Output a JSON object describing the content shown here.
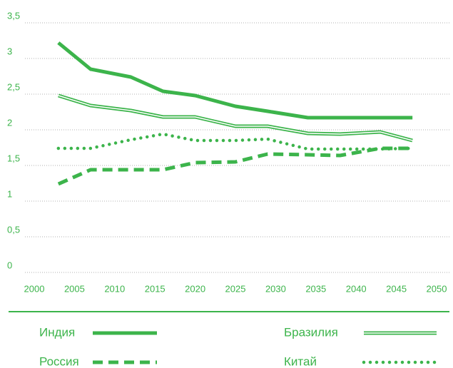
{
  "chart_data": {
    "type": "line",
    "x": [
      2003,
      2007,
      2012,
      2016,
      2020,
      2025,
      2029,
      2034,
      2038,
      2043,
      2047
    ],
    "series": [
      {
        "name": "Индия",
        "color": "#3cb44b",
        "style": "solid",
        "values": [
          3.22,
          2.85,
          2.74,
          2.54,
          2.48,
          2.33,
          2.26,
          2.17,
          2.17,
          2.17,
          2.17
        ]
      },
      {
        "name": "Бразилия",
        "color": "#3cb44b",
        "style": "double",
        "values": [
          2.48,
          2.34,
          2.27,
          2.18,
          2.18,
          2.05,
          2.05,
          1.95,
          1.94,
          1.97,
          1.85
        ]
      },
      {
        "name": "Россия",
        "color": "#3cb44b",
        "style": "dashed",
        "values": [
          1.24,
          1.44,
          1.44,
          1.44,
          1.54,
          1.55,
          1.66,
          1.65,
          1.64,
          1.74,
          1.74
        ]
      },
      {
        "name": "Китай",
        "color": "#3cb44b",
        "style": "dotted",
        "values": [
          1.74,
          1.74,
          1.86,
          1.94,
          1.85,
          1.85,
          1.87,
          1.73,
          1.73,
          1.73,
          1.74
        ]
      }
    ],
    "xlim": [
      2000,
      2050
    ],
    "xticks": [
      2000,
      2005,
      2010,
      2015,
      2020,
      2025,
      2030,
      2035,
      2040,
      2045,
      2050
    ],
    "ylim": [
      0,
      3.5
    ],
    "yticks": [
      0,
      {
        "value": 0.5,
        "label": "0,5"
      },
      1,
      {
        "value": 1.5,
        "label": "1,5"
      },
      2,
      {
        "value": 2.5,
        "label": "2,5"
      },
      3,
      {
        "value": 3.5,
        "label": "3,5"
      }
    ],
    "grid": true
  }
}
